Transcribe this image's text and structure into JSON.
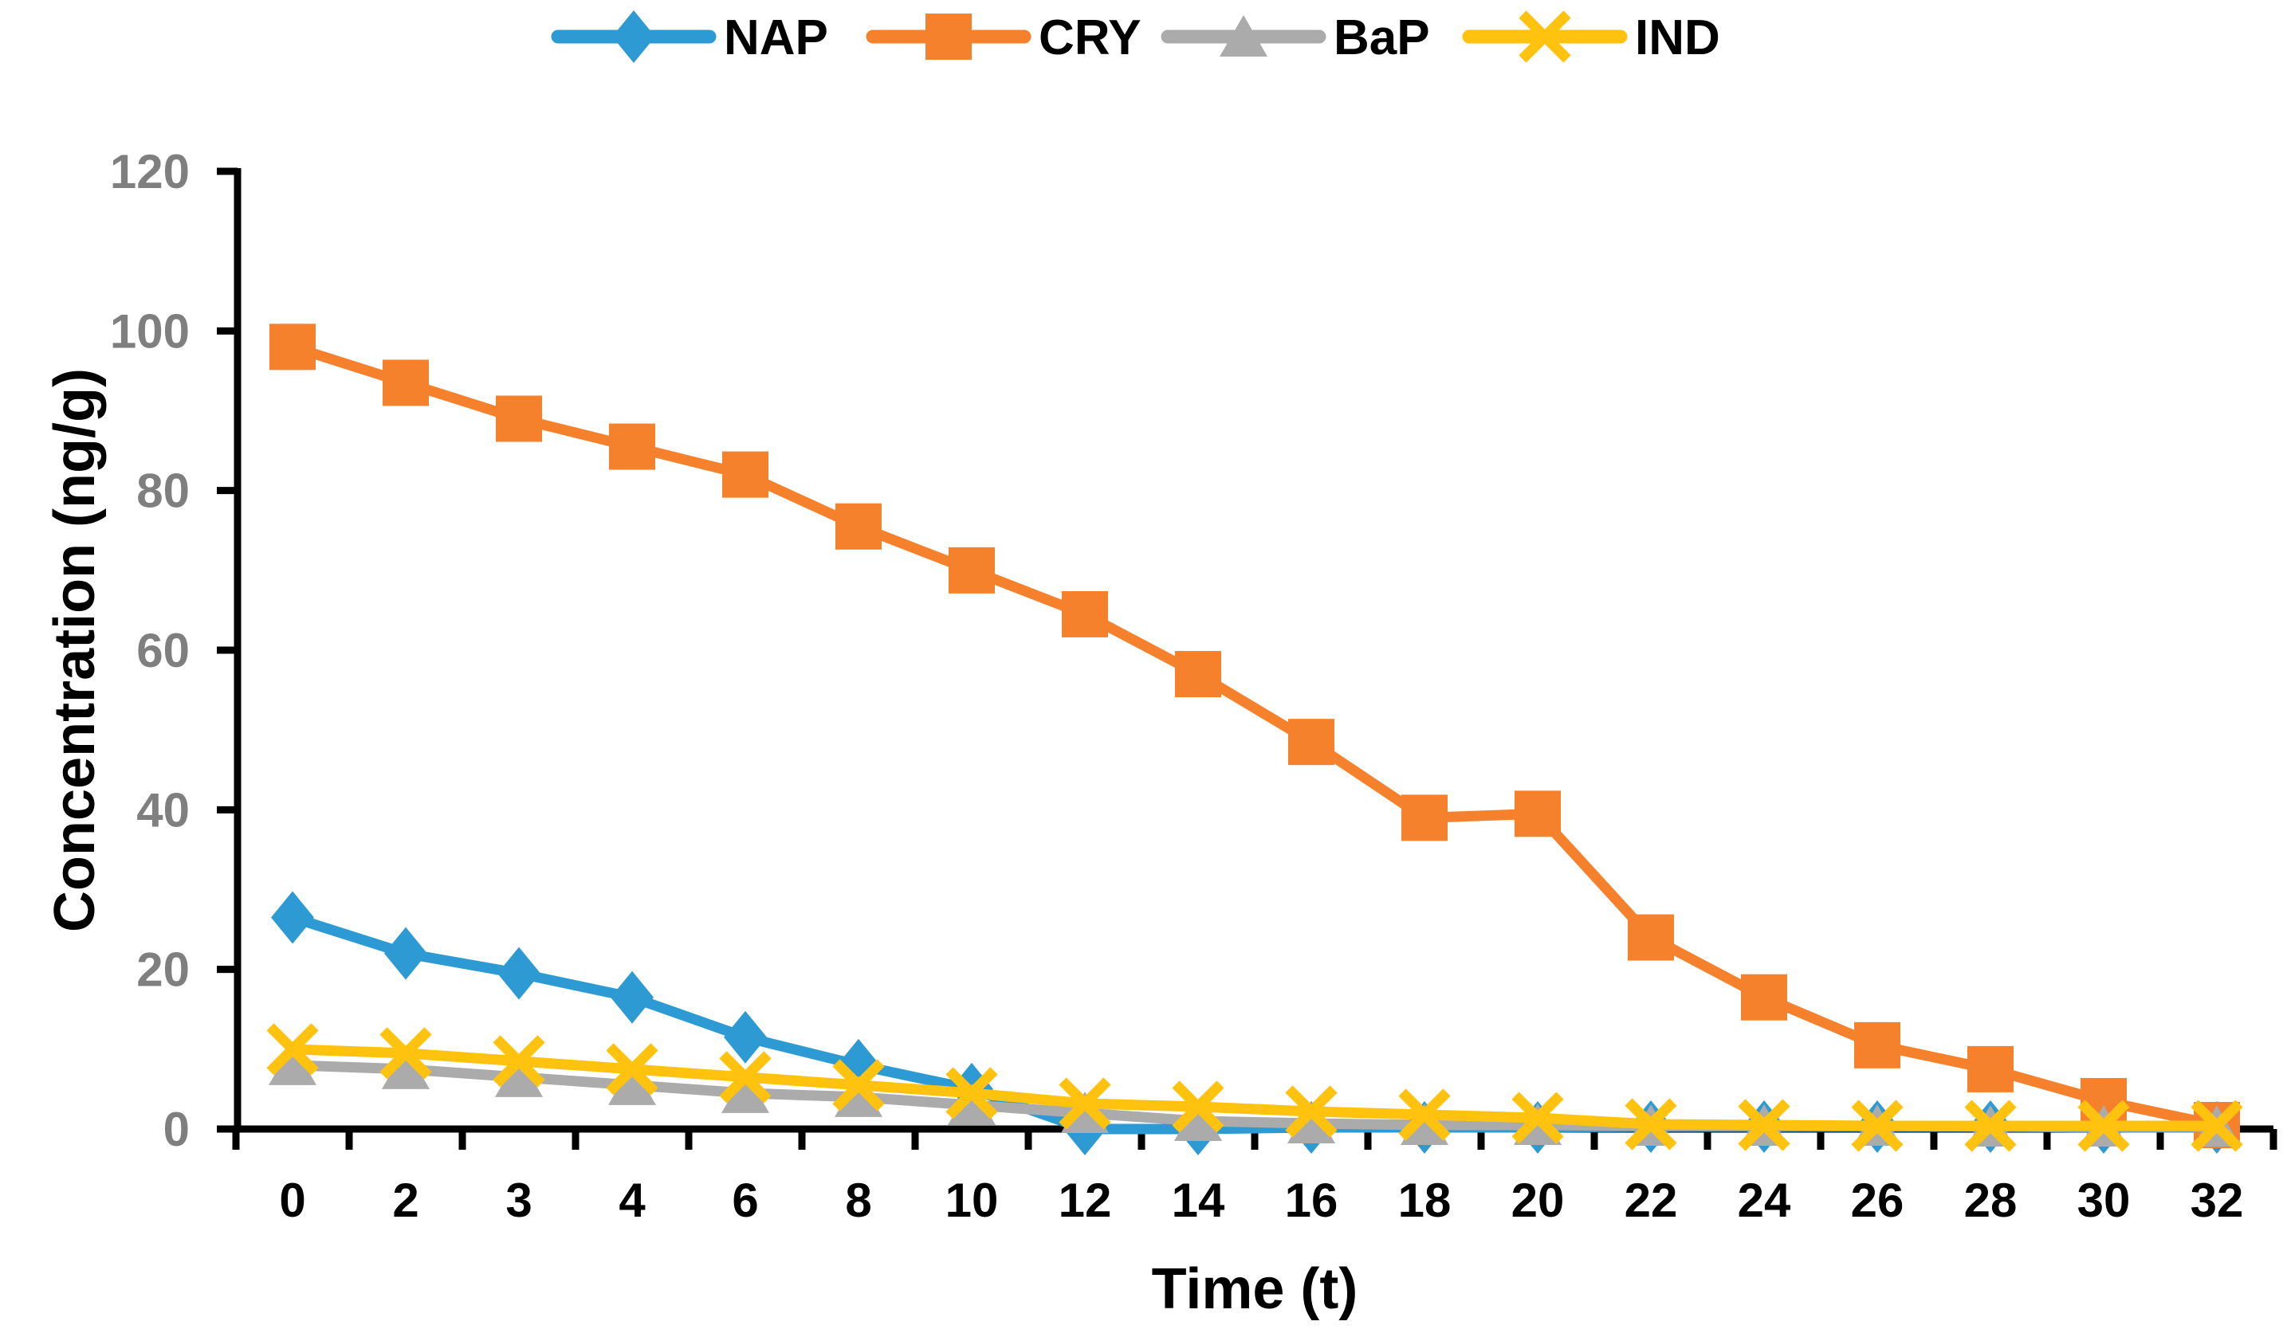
{
  "chart_data": {
    "type": "line",
    "title": "",
    "xlabel": "Time (t)",
    "ylabel": "Concentration (ng/g)",
    "ylim": [
      0,
      120
    ],
    "ytick_step": 20,
    "ytick_labels": [
      "0",
      "20",
      "40",
      "60",
      "80",
      "100",
      "120"
    ],
    "grid": false,
    "legend_position": "top-center",
    "axis_color": "#000000",
    "ytick_label_color": "#7F7F7F",
    "xtick_label_color": "#000000",
    "background_color": "#FFFFFF",
    "categories": [
      "0",
      "2",
      "3",
      "4",
      "6",
      "8",
      "10",
      "12",
      "14",
      "16",
      "18",
      "20",
      "22",
      "24",
      "26",
      "28",
      "30",
      "32"
    ],
    "series": [
      {
        "name": "NAP",
        "marker": "diamond",
        "color": "#2D9AD3",
        "values": [
          26.5,
          22,
          19.5,
          16.5,
          11.5,
          8,
          5,
          0,
          0,
          0.2,
          0.2,
          0.2,
          0.3,
          0.3,
          0.3,
          0.3,
          0.2,
          0.2
        ]
      },
      {
        "name": "CRY",
        "marker": "square",
        "color": "#F6812C",
        "values": [
          98,
          93.5,
          89,
          85.5,
          82,
          75.5,
          70,
          64.5,
          57,
          48.5,
          39,
          39.5,
          24,
          16.5,
          10.5,
          7.5,
          3.5,
          0.5
        ]
      },
      {
        "name": "BaP",
        "marker": "triangle",
        "color": "#ABABAB",
        "values": [
          8,
          7.5,
          6.5,
          5.5,
          4.5,
          4,
          3,
          2,
          1,
          0.7,
          0.5,
          0.5,
          0.4,
          0.4,
          0.4,
          0.3,
          0.3,
          0.3
        ]
      },
      {
        "name": "IND",
        "marker": "x",
        "color": "#FFC20E",
        "values": [
          10,
          9.5,
          8.5,
          7.5,
          6.5,
          5.5,
          4.5,
          3.2,
          2.8,
          2.2,
          1.8,
          1.4,
          0.6,
          0.5,
          0.4,
          0.4,
          0.4,
          0.4
        ]
      }
    ]
  }
}
